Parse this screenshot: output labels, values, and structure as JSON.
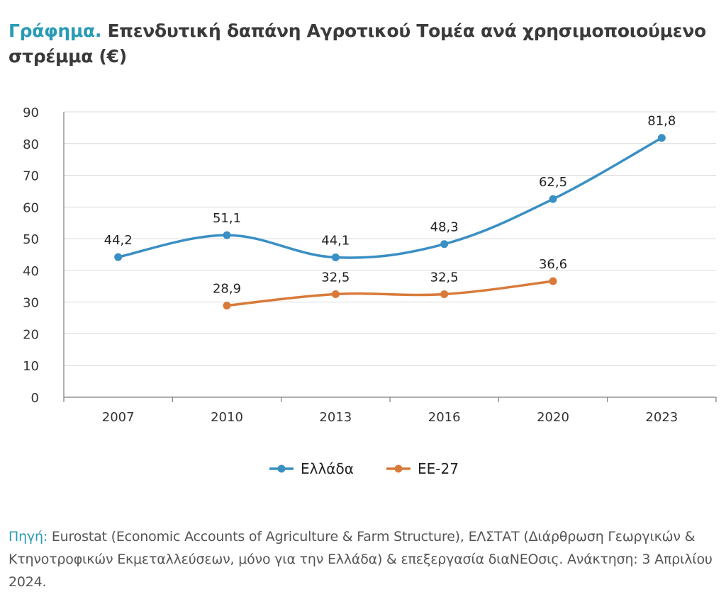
{
  "title": {
    "prefix": "Γράφημα.",
    "text": "Επενδυτική δαπάνη Αγροτικού Τομέα ανά χρησιμοποιούμενο στρέμμα (€)"
  },
  "source": {
    "label": "Πηγή:",
    "text": "Eurostat (Economic Accounts of Agriculture & Farm Structure), ΕΛΣΤΑΤ (Διάρθρωση Γεωργικών & Κτηνοτροφικών Εκμεταλλεύσεων, μόνο για την Ελλάδα) & επεξεργασία διαΝΕΟσις. Ανάκτηση: 3 Απριλίου 2024."
  },
  "colors": {
    "accent": "#2a9bb5",
    "greece": "#3a8fc4",
    "eu27": "#d97a3a"
  },
  "chart_data": {
    "type": "line",
    "categories": [
      "2007",
      "2010",
      "2013",
      "2016",
      "2020",
      "2023"
    ],
    "ylim": [
      0,
      90
    ],
    "yticks": [
      0,
      10,
      20,
      30,
      40,
      50,
      60,
      70,
      80,
      90
    ],
    "grid": true,
    "legend": "bottom-center",
    "xlabel": "",
    "ylabel": "",
    "series": [
      {
        "name": "Ελλάδα",
        "color": "#3a8fc4",
        "values": [
          44.2,
          51.1,
          44.1,
          48.3,
          62.5,
          81.8
        ],
        "labels": [
          "44,2",
          "51,1",
          "44,1",
          "48,3",
          "62,5",
          "81,8"
        ]
      },
      {
        "name": "ΕΕ-27",
        "color": "#d97a3a",
        "values": [
          null,
          28.9,
          32.5,
          32.5,
          36.6,
          null
        ],
        "labels": [
          "",
          "28,9",
          "32,5",
          "32,5",
          "36,6",
          ""
        ]
      }
    ]
  }
}
